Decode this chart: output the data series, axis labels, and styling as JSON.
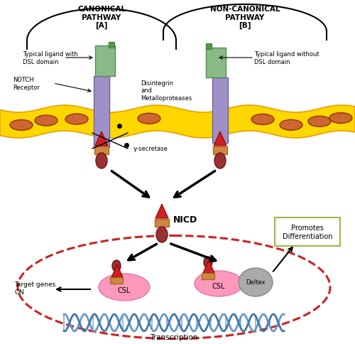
{
  "bg_color": "#ffffff",
  "membrane_color": "#FFD700",
  "membrane_outline": "#E8A000",
  "oval_color": "#CC6633",
  "oval_outline": "#993300",
  "receptor_color": "#A090C8",
  "receptor_outline": "#7060A0",
  "ligand_color": "#88BB88",
  "ligand_outline": "#558855",
  "ligand_nub_color": "#559944",
  "nicd_orange_color": "#CC8844",
  "nicd_red_color": "#CC2222",
  "nicd_oval_color": "#993333",
  "dashed_color": "#CC2222",
  "csl_color": "#FF99BB",
  "deltex_color": "#AAAAAA",
  "dna_color1": "#6699CC",
  "dna_color2": "#4477AA",
  "box_edge_color": "#99BB44",
  "rAx": 0.285,
  "rBx": 0.62,
  "membrane_mid": 0.585,
  "membrane_thick": 0.072,
  "title_canonical": "CANONICAL\nPATHWAY\n[A]",
  "title_noncanonical": "NON-CANONICAL\nPATHWAY\n[B]",
  "label_typical_with": "Typical ligand with\nDSL domain",
  "label_typical_without": "Typical ligand without\nDSL domain",
  "label_notch": "NOTCH\nReceptor",
  "label_disintegrin": "Disintegrin\nand\nMetalloproteases",
  "label_secretase": "γ-secretase",
  "label_nicd": "NICD",
  "label_target": "Target genes\nON",
  "label_transcription": "Transcription",
  "label_csl1": "CSL",
  "label_csl2": "CSL",
  "label_deltex": "Deltex",
  "label_promotes": "Promotes\nDifferentiation"
}
